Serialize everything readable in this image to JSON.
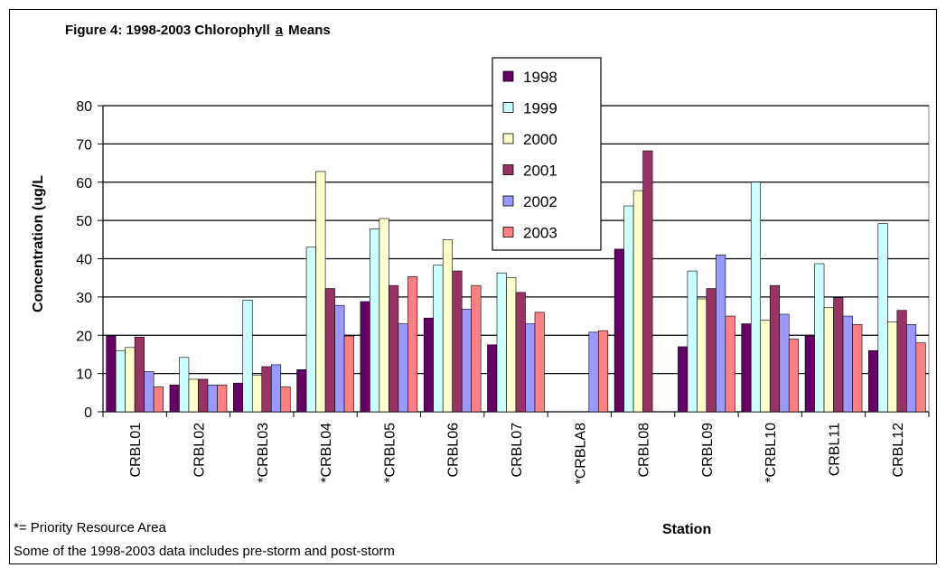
{
  "chart_data": {
    "type": "bar",
    "title": "Figure 4: 1998-2003 Chlorophyll",
    "title_underlined": "a",
    "title_suffix": "Means",
    "xlabel": "Station",
    "ylabel": "Concentration (ug/L",
    "ylim": [
      0,
      80
    ],
    "yticks": [
      0,
      10,
      20,
      30,
      40,
      50,
      60,
      70,
      80
    ],
    "grid": true,
    "legend_position": "top-center",
    "categories": [
      "CRBL01",
      "CRBL02",
      "*CRBL03",
      "*CRBL04",
      "*CRBL05",
      "CRBL06",
      "CRBL07",
      "*CRBLA8",
      "CRBL08",
      "CRBL09",
      "*CRBL10",
      "CRBL11",
      "CRBL12"
    ],
    "series": [
      {
        "name": "1998",
        "color": "#660066",
        "values": [
          19.8,
          7,
          7.5,
          11,
          28.8,
          24.5,
          17.5,
          null,
          42.5,
          17,
          23,
          19.8,
          16
        ]
      },
      {
        "name": "1999",
        "color": "#ccffff",
        "values": [
          16,
          14.2,
          29.2,
          43,
          47.8,
          38.3,
          36.3,
          null,
          53.8,
          36.8,
          60,
          38.7,
          49.2
        ]
      },
      {
        "name": "2000",
        "color": "#ffffcc",
        "values": [
          16.8,
          8.5,
          9.5,
          62.8,
          50.5,
          45,
          35,
          null,
          57.8,
          29.5,
          24,
          27.2,
          23.5
        ]
      },
      {
        "name": "2001",
        "color": "#993366",
        "values": [
          19.5,
          8.5,
          11.8,
          32.2,
          33,
          36.8,
          31.2,
          null,
          68.2,
          32.2,
          33,
          29.8,
          26.5
        ]
      },
      {
        "name": "2002",
        "color": "#9999ff",
        "values": [
          10.5,
          7,
          12.3,
          27.8,
          23,
          26.8,
          23,
          20.8,
          null,
          41,
          25.5,
          25,
          22.8
        ]
      },
      {
        "name": "2003",
        "color": "#ff8080",
        "values": [
          6.5,
          7,
          6.5,
          19.8,
          35.3,
          33,
          26,
          21.2,
          null,
          25,
          19,
          22.8,
          18
        ]
      }
    ]
  },
  "notes": {
    "priority": "*= Priority Resource Area",
    "storm": "Some of the 1998-2003 data includes pre-storm and post-storm"
  }
}
